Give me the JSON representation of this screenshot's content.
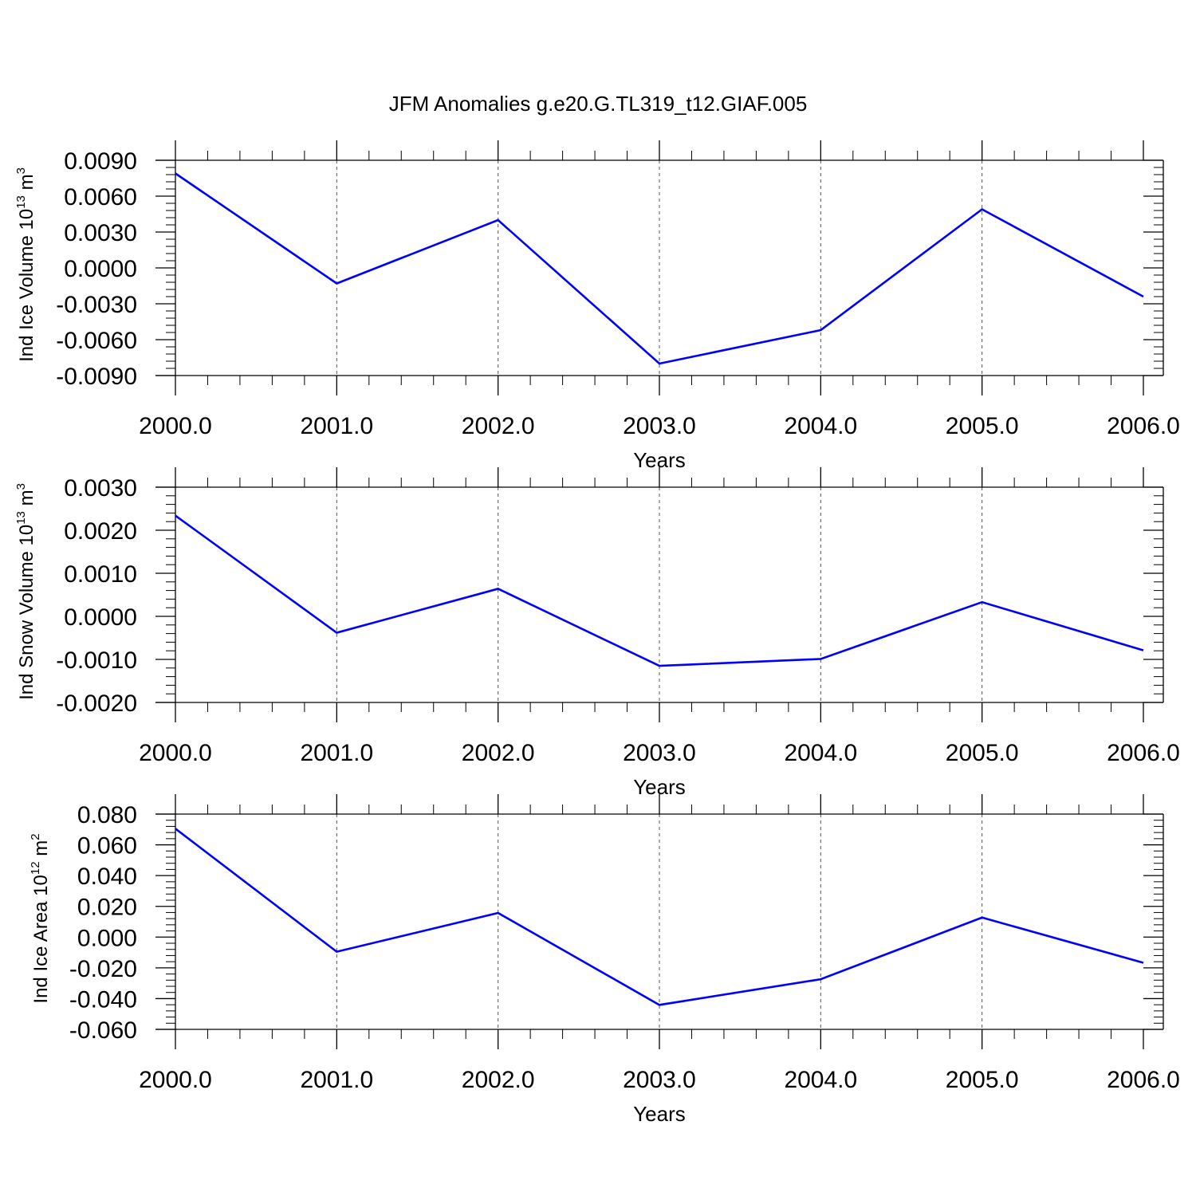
{
  "title": "JFM Anomalies g.e20.G.TL319_t12.GIAF.005",
  "colors": {
    "series": "#0000ff",
    "axes": "#000000",
    "grid": "#555555",
    "background": "#ffffff"
  },
  "chart_data": [
    {
      "type": "line",
      "ylabel": {
        "text": "Ind Ice Volume 10",
        "exp": "13",
        "unit": " m",
        "unit_exp": "3"
      },
      "xlabel": "Years",
      "x": [
        2000,
        2001,
        2002,
        2003,
        2004,
        2005,
        2006
      ],
      "series": [
        {
          "values": [
            0.0079,
            -0.0013,
            0.004,
            -0.008,
            -0.0052,
            0.0049,
            -0.0024
          ]
        }
      ],
      "xlim": [
        2000,
        2006
      ],
      "ylim": [
        -0.009,
        0.009
      ],
      "x_ticks": [
        "2000.0",
        "2001.0",
        "2002.0",
        "2003.0",
        "2004.0",
        "2005.0",
        "2006.0"
      ],
      "y_ticks": [
        "0.0090",
        "0.0060",
        "0.0030",
        "0.0000",
        "-0.0030",
        "-0.0060",
        "-0.0090"
      ],
      "y_tick_values": [
        0.009,
        0.006,
        0.003,
        0.0,
        -0.003,
        -0.006,
        -0.009
      ],
      "grid": "vertical dashed at major x ticks"
    },
    {
      "type": "line",
      "ylabel": {
        "text": "Ind Snow Volume 10",
        "exp": "13",
        "unit": " m",
        "unit_exp": "3"
      },
      "xlabel": "Years",
      "x": [
        2000,
        2001,
        2002,
        2003,
        2004,
        2005,
        2006
      ],
      "series": [
        {
          "values": [
            0.00234,
            -0.00038,
            0.00064,
            -0.00115,
            -0.00099,
            0.00033,
            -0.00079
          ]
        }
      ],
      "xlim": [
        2000,
        2006
      ],
      "ylim": [
        -0.002,
        0.003
      ],
      "x_ticks": [
        "2000.0",
        "2001.0",
        "2002.0",
        "2003.0",
        "2004.0",
        "2005.0",
        "2006.0"
      ],
      "y_ticks": [
        "0.0030",
        "0.0020",
        "0.0010",
        "0.0000",
        "-0.0010",
        "-0.0020"
      ],
      "y_tick_values": [
        0.003,
        0.002,
        0.001,
        0.0,
        -0.001,
        -0.002
      ],
      "grid": "vertical dashed at major x ticks"
    },
    {
      "type": "line",
      "ylabel": {
        "text": "Ind Ice Area 10",
        "exp": "12",
        "unit": " m",
        "unit_exp": "2"
      },
      "xlabel": "Years",
      "x": [
        2000,
        2001,
        2002,
        2003,
        2004,
        2005,
        2006
      ],
      "series": [
        {
          "values": [
            0.0705,
            -0.0095,
            0.0157,
            -0.0441,
            -0.0274,
            0.0127,
            -0.0167
          ]
        }
      ],
      "xlim": [
        2000,
        2006
      ],
      "ylim": [
        -0.06,
        0.08
      ],
      "x_ticks": [
        "2000.0",
        "2001.0",
        "2002.0",
        "2003.0",
        "2004.0",
        "2005.0",
        "2006.0"
      ],
      "y_ticks": [
        "0.080",
        "0.060",
        "0.040",
        "0.020",
        "0.000",
        "-0.020",
        "-0.040",
        "-0.060"
      ],
      "y_tick_values": [
        0.08,
        0.06,
        0.04,
        0.02,
        0.0,
        -0.02,
        -0.04,
        -0.06
      ],
      "grid": "vertical dashed at major x ticks"
    }
  ]
}
